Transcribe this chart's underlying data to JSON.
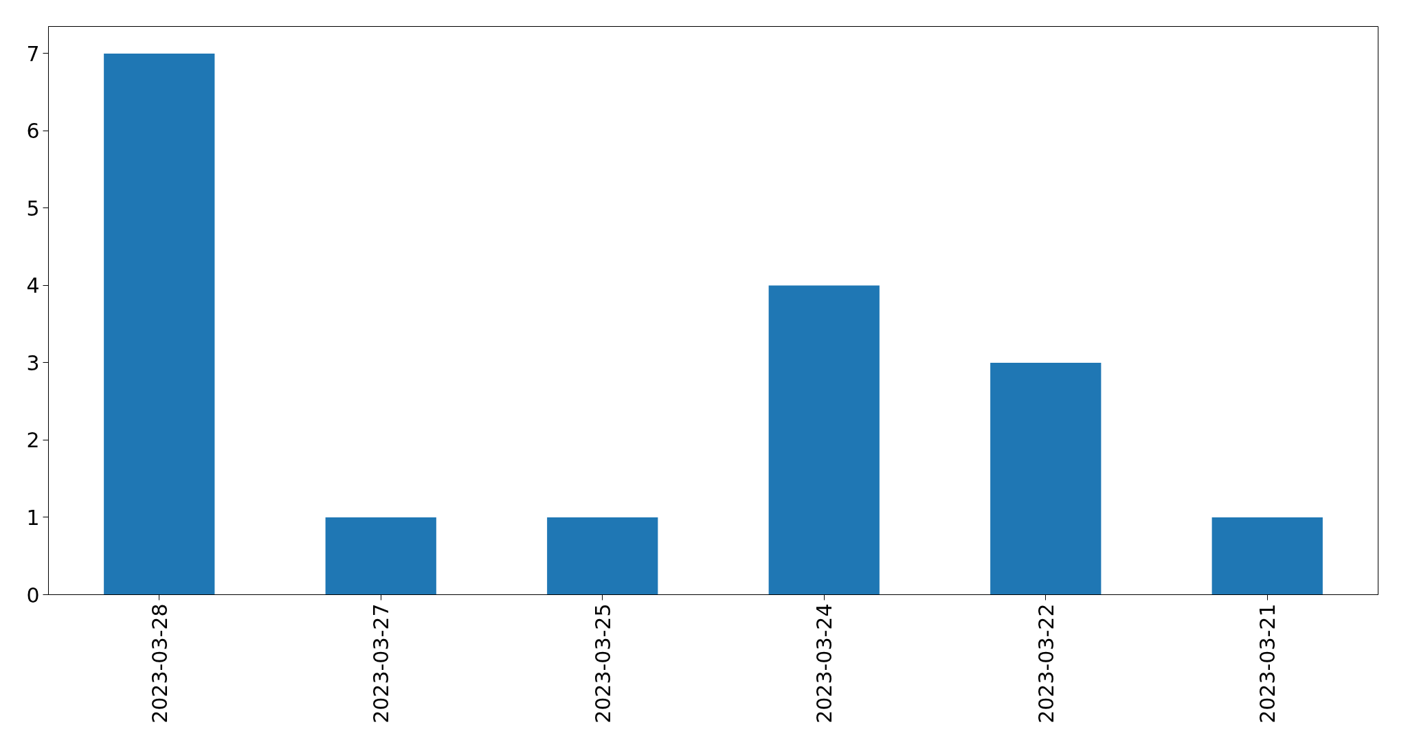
{
  "chart_data": {
    "type": "bar",
    "categories": [
      "2023-03-28",
      "2023-03-27",
      "2023-03-25",
      "2023-03-24",
      "2023-03-22",
      "2023-03-21"
    ],
    "values": [
      7,
      1,
      1,
      4,
      3,
      1
    ],
    "color": "#1f77b4",
    "ylim": [
      0,
      7.35
    ],
    "yticks": [
      0,
      1,
      2,
      3,
      4,
      5,
      6,
      7
    ],
    "grid": false
  }
}
